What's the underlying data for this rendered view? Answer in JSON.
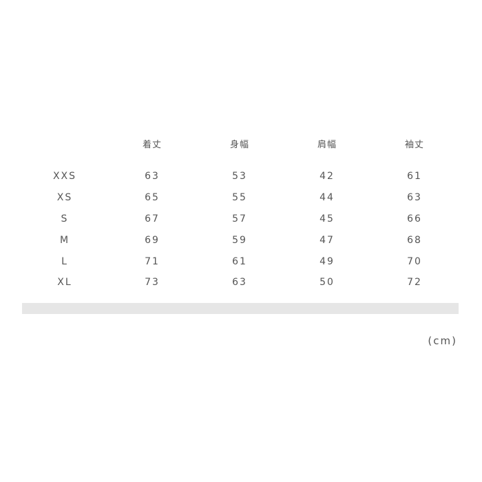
{
  "table": {
    "headers": [
      "",
      "着丈",
      "身幅",
      "肩幅",
      "袖丈"
    ],
    "rows": [
      [
        "XXS",
        "63",
        "53",
        "42",
        "61"
      ],
      [
        "XS",
        "65",
        "55",
        "44",
        "63"
      ],
      [
        "S",
        "67",
        "57",
        "45",
        "66"
      ],
      [
        "M",
        "69",
        "59",
        "47",
        "68"
      ],
      [
        "L",
        "71",
        "61",
        "49",
        "70"
      ],
      [
        "XL",
        "73",
        "63",
        "50",
        "72"
      ]
    ]
  },
  "unit": "(cm)",
  "colors": {
    "text": "#555555",
    "bar": "#e6e6e6"
  }
}
